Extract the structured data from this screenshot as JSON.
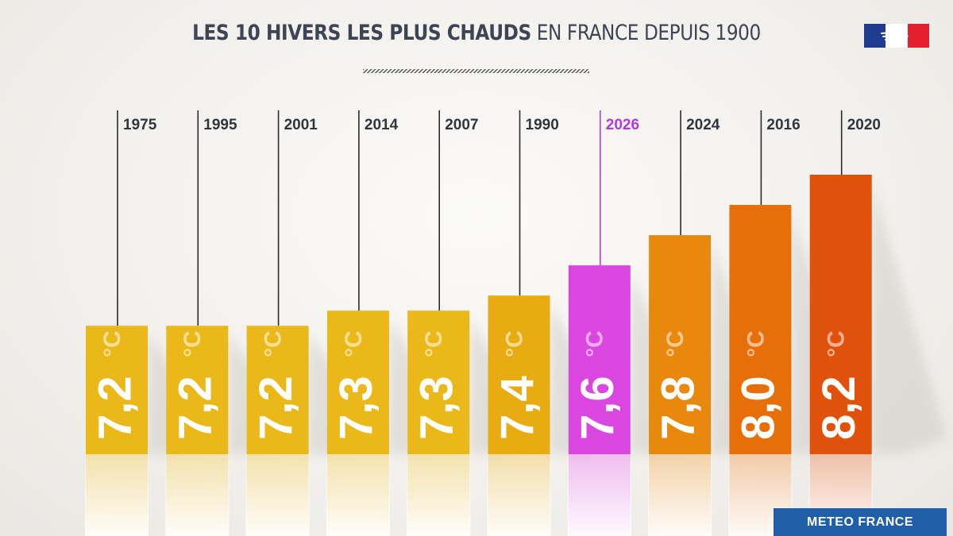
{
  "title": {
    "bold": "LES 10 HIVERS LES PLUS CHAUDS",
    "light": "EN FRANCE DEPUIS 1900"
  },
  "footer": {
    "label": "METEO FRANCE"
  },
  "logo": {
    "icon": "marianne-flag-icon"
  },
  "chart_data": {
    "type": "bar",
    "categories": [
      "1975",
      "1995",
      "2001",
      "2014",
      "2007",
      "1990",
      "2026",
      "2024",
      "2016",
      "2020"
    ],
    "values": [
      7.2,
      7.2,
      7.2,
      7.3,
      7.3,
      7.4,
      7.6,
      7.8,
      8.0,
      8.2
    ],
    "value_labels": [
      "7,2",
      "7,2",
      "7,2",
      "7,3",
      "7,3",
      "7,4",
      "7,6",
      "7,8",
      "8,0",
      "8,2"
    ],
    "unit": "°C",
    "highlight": "2026",
    "colors": [
      "#eab818",
      "#eab818",
      "#eab818",
      "#eab818",
      "#eab818",
      "#e8ab11",
      "#d946e0",
      "#e8880c",
      "#e76f0a",
      "#e0510c"
    ],
    "ylim": [
      6.35,
      8.2
    ],
    "legend": "none",
    "grid": false
  }
}
